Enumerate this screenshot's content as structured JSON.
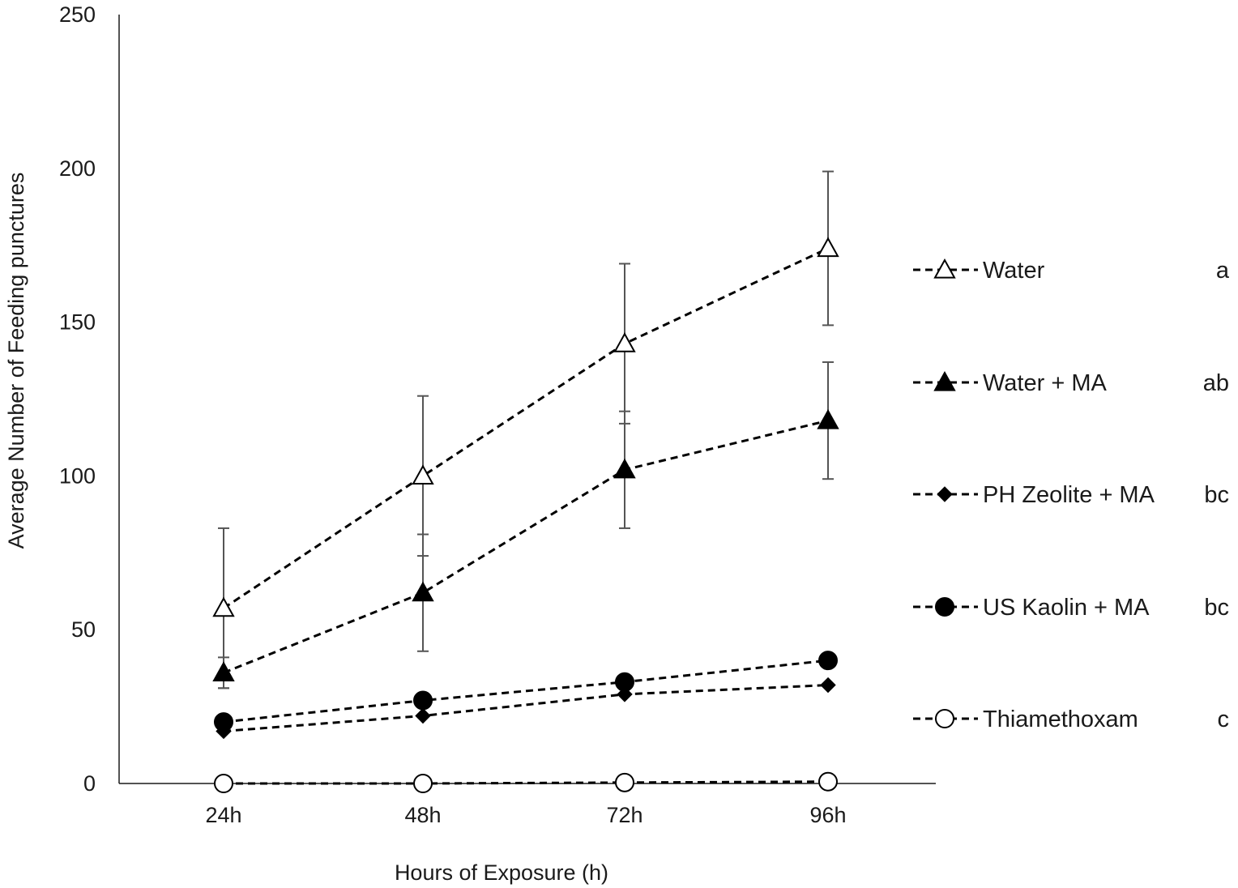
{
  "chart_data": {
    "type": "line",
    "title": "",
    "xlabel": "Hours of Exposure (h)",
    "ylabel": "Average Number of Feeding punctures",
    "categories": [
      "24h",
      "48h",
      "72h",
      "96h"
    ],
    "ylim": [
      0,
      250
    ],
    "yticks": [
      0,
      50,
      100,
      150,
      200,
      250
    ],
    "grid": false,
    "legend_position": "right",
    "series": [
      {
        "name": "Water",
        "letter": "a",
        "marker": "triangle-open",
        "values": [
          57,
          100,
          143,
          174
        ],
        "error": [
          26,
          26,
          26,
          25
        ]
      },
      {
        "name": "Water + MA",
        "letter": "ab",
        "marker": "triangle-filled",
        "values": [
          36,
          62,
          102,
          118
        ],
        "error": [
          5,
          19,
          19,
          19
        ]
      },
      {
        "name": "PH Zeolite + MA",
        "letter": "bc",
        "marker": "diamond-filled",
        "values": [
          17,
          22,
          29,
          32
        ],
        "error": [
          0,
          0,
          0,
          0
        ]
      },
      {
        "name": "US Kaolin + MA",
        "letter": "bc",
        "marker": "circle-filled",
        "values": [
          20,
          27,
          33,
          40
        ],
        "error": [
          0,
          0,
          0,
          0
        ]
      },
      {
        "name": "Thiamethoxam",
        "letter": "c",
        "marker": "circle-open",
        "values": [
          0,
          0,
          0.3,
          0.6
        ],
        "error": [
          0,
          0,
          0,
          0
        ]
      }
    ]
  }
}
